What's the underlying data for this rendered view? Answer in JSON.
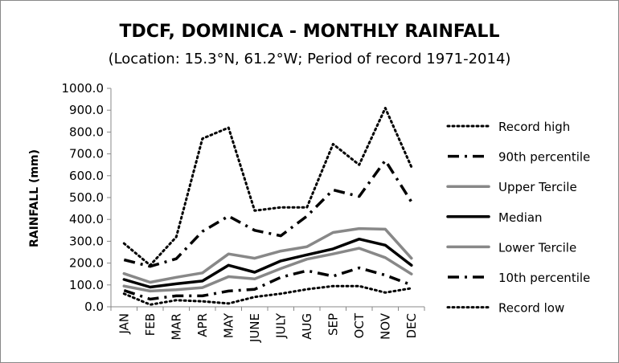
{
  "chart_data": {
    "type": "line",
    "title": "TDCF, DOMINICA - MONTHLY RAINFALL",
    "subtitle": "(Location: 15.3°N, 61.2°W; Period of record 1971-2014)",
    "ylabel": "RAINFALL (mm)",
    "xlabel": "",
    "ylim": [
      0,
      1000
    ],
    "ytick_step": 100,
    "ytick_labels": [
      "0.0",
      "100.0",
      "200.0",
      "300.0",
      "400.0",
      "500.0",
      "600.0",
      "700.0",
      "800.0",
      "900.0",
      "1000.0"
    ],
    "categories": [
      "JAN",
      "FEB",
      "MAR",
      "APR",
      "MAY",
      "JUNE",
      "JULY",
      "AUG",
      "SEP",
      "OCT",
      "NOV",
      "DEC"
    ],
    "grid": false,
    "legend_position": "right",
    "series": [
      {
        "name": "Record high",
        "style": "dotted",
        "color": "#000000",
        "values": [
          290,
          190,
          320,
          770,
          820,
          440,
          455,
          455,
          745,
          650,
          910,
          640
        ]
      },
      {
        "name": "90th percentile",
        "style": "dashdot",
        "color": "#000000",
        "values": [
          215,
          185,
          220,
          345,
          415,
          350,
          325,
          415,
          535,
          505,
          670,
          480
        ]
      },
      {
        "name": "Upper Tercile",
        "style": "solid",
        "color": "#888888",
        "values": [
          152,
          112,
          135,
          155,
          242,
          222,
          255,
          275,
          340,
          358,
          355,
          222
        ]
      },
      {
        "name": "Median",
        "style": "solid",
        "color": "#000000",
        "values": [
          125,
          90,
          105,
          118,
          190,
          158,
          210,
          238,
          265,
          310,
          282,
          190
        ]
      },
      {
        "name": "Lower Tercile",
        "style": "solid",
        "color": "#888888",
        "values": [
          95,
          72,
          78,
          88,
          138,
          128,
          175,
          218,
          242,
          268,
          225,
          150
        ]
      },
      {
        "name": "10th percentile",
        "style": "dashdot",
        "color": "#000000",
        "values": [
          75,
          35,
          50,
          50,
          72,
          80,
          135,
          165,
          140,
          178,
          145,
          100
        ]
      },
      {
        "name": "Record low",
        "style": "dotted",
        "color": "#000000",
        "values": [
          60,
          10,
          30,
          25,
          15,
          45,
          60,
          80,
          95,
          95,
          65,
          85
        ]
      }
    ]
  }
}
